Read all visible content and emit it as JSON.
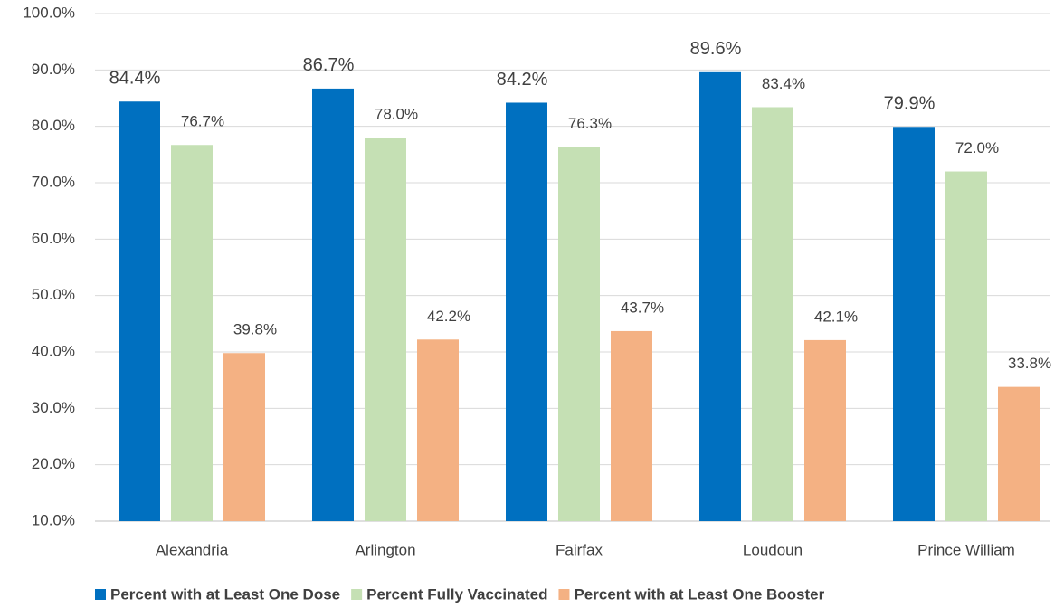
{
  "chart_data": {
    "type": "bar",
    "categories": [
      "Alexandria",
      "Arlington",
      "Fairfax",
      "Loudoun",
      "Prince William"
    ],
    "series": [
      {
        "name": "Percent with at Least One Dose",
        "color": "#0070c0",
        "values": [
          84.4,
          86.7,
          84.2,
          89.6,
          79.9
        ],
        "value_labels": [
          "84.4%",
          "86.7%",
          "84.2%",
          "89.6%",
          "79.9%"
        ]
      },
      {
        "name": "Percent Fully Vaccinated",
        "color": "#c5e0b4",
        "values": [
          76.7,
          78.0,
          76.3,
          83.4,
          72.0
        ],
        "value_labels": [
          "76.7%",
          "78.0%",
          "76.3%",
          "83.4%",
          "72.0%"
        ]
      },
      {
        "name": "Percent with at Least One Booster",
        "color": "#f4b183",
        "values": [
          39.8,
          42.2,
          43.7,
          42.1,
          33.8
        ],
        "value_labels": [
          "39.8%",
          "42.2%",
          "43.7%",
          "42.1%",
          "33.8%"
        ]
      }
    ],
    "ylim": [
      10,
      100
    ],
    "yticks": [
      {
        "value": 10,
        "label": "10.0%"
      },
      {
        "value": 20,
        "label": "20.0%"
      },
      {
        "value": 30,
        "label": "30.0%"
      },
      {
        "value": 40,
        "label": "40.0%"
      },
      {
        "value": 50,
        "label": "50.0%"
      },
      {
        "value": 60,
        "label": "60.0%"
      },
      {
        "value": 70,
        "label": "70.0%"
      },
      {
        "value": 80,
        "label": "80.0%"
      },
      {
        "value": 90,
        "label": "90.0%"
      },
      {
        "value": 100,
        "label": "100.0%"
      }
    ],
    "grid": true,
    "legend": "bottom"
  }
}
